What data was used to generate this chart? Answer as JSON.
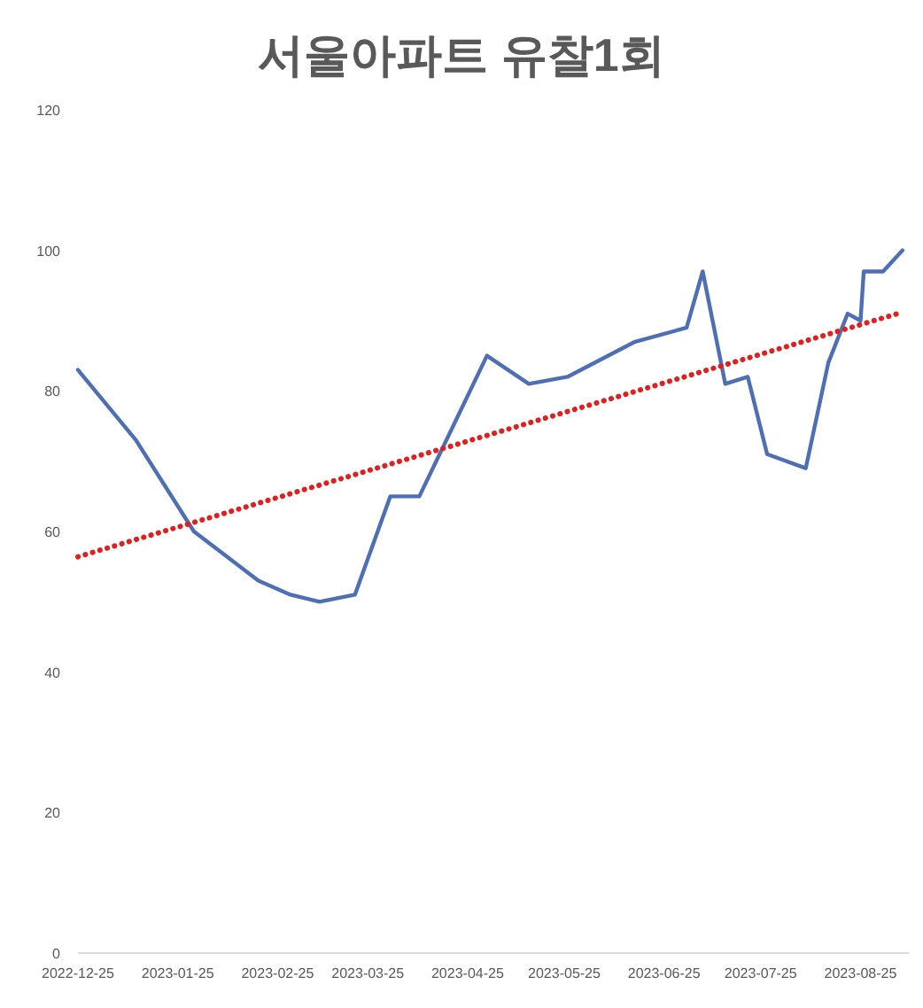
{
  "chart_data": {
    "type": "line",
    "title": "서울아파트 유찰1회",
    "xlim": [
      "2022-12-25",
      "2023-09-09"
    ],
    "xticks": [
      "2022-12-25",
      "2023-01-25",
      "2023-02-25",
      "2023-03-25",
      "2023-04-25",
      "2023-05-25",
      "2023-06-25",
      "2023-07-25",
      "2023-08-25"
    ],
    "ylim": [
      0,
      120
    ],
    "yticks": [
      0,
      20,
      40,
      60,
      80,
      100,
      120
    ],
    "grid": false,
    "marker": "none",
    "series": [
      {
        "color": "#4f6fb5",
        "line_style": "solid",
        "x": [
          "2022-12-25",
          "2023-01-12",
          "2023-01-30",
          "2023-02-19",
          "2023-03-01",
          "2023-03-10",
          "2023-03-21",
          "2023-04-01",
          "2023-04-10",
          "2023-05-01",
          "2023-05-14",
          "2023-05-26",
          "2023-06-16",
          "2023-07-02",
          "2023-07-07",
          "2023-07-14",
          "2023-07-21",
          "2023-07-27",
          "2023-08-08",
          "2023-08-15",
          "2023-08-21",
          "2023-08-25",
          "2023-08-26",
          "2023-09-01",
          "2023-09-07"
        ],
        "values": [
          83,
          73,
          60,
          53,
          51,
          50,
          51,
          65,
          65,
          85,
          81,
          82,
          87,
          89,
          97,
          81,
          82,
          71,
          69,
          84,
          91,
          90,
          97,
          97,
          100
        ]
      },
      {
        "color": "#e02020",
        "line_style": "dotted",
        "x": [
          "2022-12-25",
          "2023-09-07"
        ],
        "values": [
          56.4,
          91.2
        ]
      }
    ]
  }
}
